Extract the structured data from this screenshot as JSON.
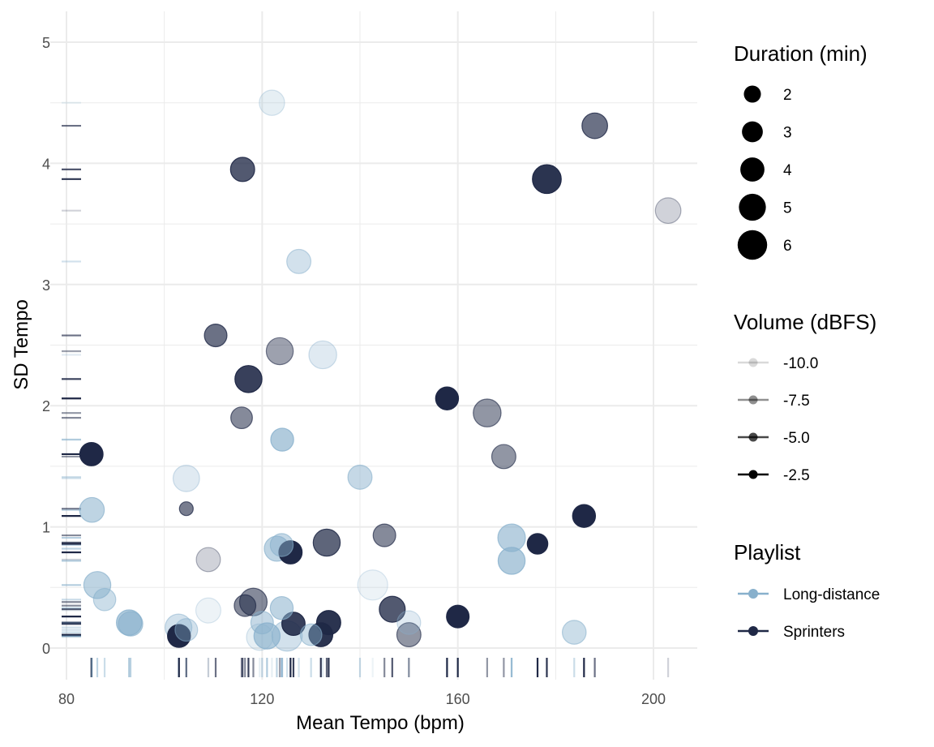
{
  "chart_data": {
    "type": "scatter",
    "xlabel": "Mean Tempo (bpm)",
    "ylabel": "SD Tempo",
    "xlim": [
      78,
      208
    ],
    "ylim": [
      -0.25,
      5.25
    ],
    "xticks": [
      80,
      120,
      160,
      200
    ],
    "yticks": [
      0,
      1,
      2,
      3,
      4,
      5
    ],
    "grid": true,
    "rug": true,
    "legend_position": "right",
    "colors": {
      "Long-distance": "#88b0cc",
      "Sprinters": "#1f2846"
    },
    "legends": {
      "size": {
        "title": "Duration (min)",
        "values": [
          2,
          3,
          4,
          5,
          6
        ]
      },
      "alpha": {
        "title": "Volume (dBFS)",
        "labels": [
          "-10.0",
          "-7.5",
          "-5.0",
          "-2.5"
        ],
        "values": [
          -10,
          -7.5,
          -5,
          -2.5
        ]
      },
      "color": {
        "title": "Playlist",
        "labels": [
          "Long-distance",
          "Sprinters"
        ]
      }
    },
    "points": [
      {
        "x": 85.1,
        "y": 1.6,
        "dur": 3.7,
        "vol": -2.5,
        "pl": "Sprinters"
      },
      {
        "x": 85.2,
        "y": 1.14,
        "dur": 4.2,
        "vol": -6.5,
        "pl": "Long-distance"
      },
      {
        "x": 86.3,
        "y": 0.52,
        "dur": 5.0,
        "vol": -6.5,
        "pl": "Long-distance"
      },
      {
        "x": 87.8,
        "y": 0.4,
        "dur": 3.4,
        "vol": -7.5,
        "pl": "Long-distance"
      },
      {
        "x": 92.8,
        "y": 0.21,
        "dur": 4.4,
        "vol": -5.5,
        "pl": "Long-distance"
      },
      {
        "x": 93.1,
        "y": 0.2,
        "dur": 4.1,
        "vol": -6.5,
        "pl": "Long-distance"
      },
      {
        "x": 102.9,
        "y": 0.17,
        "dur": 4.9,
        "vol": -8.0,
        "pl": "Long-distance"
      },
      {
        "x": 103.0,
        "y": 0.1,
        "dur": 3.6,
        "vol": -2.5,
        "pl": "Sprinters"
      },
      {
        "x": 104.5,
        "y": 0.15,
        "dur": 3.5,
        "vol": -8.0,
        "pl": "Long-distance"
      },
      {
        "x": 104.5,
        "y": 1.4,
        "dur": 4.8,
        "vol": -9.0,
        "pl": "Long-distance"
      },
      {
        "x": 104.5,
        "y": 1.15,
        "dur": 1.3,
        "vol": -6.0,
        "pl": "Sprinters"
      },
      {
        "x": 109.0,
        "y": 0.73,
        "dur": 4.0,
        "vol": -9.5,
        "pl": "Sprinters"
      },
      {
        "x": 109.0,
        "y": 0.31,
        "dur": 4.3,
        "vol": -10.0,
        "pl": "Long-distance"
      },
      {
        "x": 110.5,
        "y": 2.58,
        "dur": 3.5,
        "vol": -5.5,
        "pl": "Sprinters"
      },
      {
        "x": 115.8,
        "y": 1.9,
        "dur": 3.2,
        "vol": -6.5,
        "pl": "Sprinters"
      },
      {
        "x": 116.0,
        "y": 3.95,
        "dur": 4.0,
        "vol": -4.5,
        "pl": "Sprinters"
      },
      {
        "x": 116.5,
        "y": 0.35,
        "dur": 3.2,
        "vol": -6.5,
        "pl": "Sprinters"
      },
      {
        "x": 117.2,
        "y": 2.22,
        "dur": 5.0,
        "vol": -3.5,
        "pl": "Sprinters"
      },
      {
        "x": 118.2,
        "y": 0.38,
        "dur": 5.2,
        "vol": -6.5,
        "pl": "Sprinters"
      },
      {
        "x": 119.5,
        "y": 0.09,
        "dur": 4.8,
        "vol": -9.5,
        "pl": "Long-distance"
      },
      {
        "x": 120.0,
        "y": 0.21,
        "dur": 3.5,
        "vol": -7.0,
        "pl": "Long-distance"
      },
      {
        "x": 121.0,
        "y": 0.1,
        "dur": 4.7,
        "vol": -5.5,
        "pl": "Long-distance"
      },
      {
        "x": 122.0,
        "y": 4.5,
        "dur": 4.4,
        "vol": -9.5,
        "pl": "Long-distance"
      },
      {
        "x": 123.0,
        "y": 0.82,
        "dur": 4.3,
        "vol": -6.5,
        "pl": "Long-distance"
      },
      {
        "x": 123.6,
        "y": 2.45,
        "dur": 5.0,
        "vol": -7.5,
        "pl": "Sprinters"
      },
      {
        "x": 124.0,
        "y": 0.85,
        "dur": 3.6,
        "vol": -7.0,
        "pl": "Long-distance"
      },
      {
        "x": 124.0,
        "y": 0.33,
        "dur": 3.6,
        "vol": -6.5,
        "pl": "Long-distance"
      },
      {
        "x": 124.1,
        "y": 1.72,
        "dur": 3.6,
        "vol": -5.5,
        "pl": "Long-distance"
      },
      {
        "x": 125.1,
        "y": 0.1,
        "dur": 6.3,
        "vol": -8.0,
        "pl": "Long-distance"
      },
      {
        "x": 125.8,
        "y": 0.79,
        "dur": 3.7,
        "vol": -2.5,
        "pl": "Sprinters"
      },
      {
        "x": 126.4,
        "y": 0.2,
        "dur": 3.7,
        "vol": -3.5,
        "pl": "Sprinters"
      },
      {
        "x": 127.5,
        "y": 3.19,
        "dur": 4.0,
        "vol": -8.0,
        "pl": "Long-distance"
      },
      {
        "x": 130.0,
        "y": 0.11,
        "dur": 3.2,
        "vol": -7.5,
        "pl": "Long-distance"
      },
      {
        "x": 132.0,
        "y": 0.11,
        "dur": 3.9,
        "vol": -3.0,
        "pl": "Sprinters"
      },
      {
        "x": 132.4,
        "y": 2.42,
        "dur": 5.3,
        "vol": -9.0,
        "pl": "Long-distance"
      },
      {
        "x": 133.2,
        "y": 0.87,
        "dur": 5.0,
        "vol": -5.0,
        "pl": "Sprinters"
      },
      {
        "x": 133.6,
        "y": 0.21,
        "dur": 4.0,
        "vol": -3.0,
        "pl": "Sprinters"
      },
      {
        "x": 140.0,
        "y": 1.41,
        "dur": 4.0,
        "vol": -7.0,
        "pl": "Long-distance"
      },
      {
        "x": 142.6,
        "y": 0.52,
        "dur": 6.2,
        "vol": -10.0,
        "pl": "Long-distance"
      },
      {
        "x": 145.0,
        "y": 0.93,
        "dur": 3.5,
        "vol": -6.5,
        "pl": "Sprinters"
      },
      {
        "x": 146.6,
        "y": 0.32,
        "dur": 4.6,
        "vol": -4.5,
        "pl": "Sprinters"
      },
      {
        "x": 150.0,
        "y": 0.21,
        "dur": 3.8,
        "vol": -9.0,
        "pl": "Long-distance"
      },
      {
        "x": 150.0,
        "y": 0.11,
        "dur": 4.0,
        "vol": -7.0,
        "pl": "Sprinters"
      },
      {
        "x": 157.8,
        "y": 2.06,
        "dur": 3.6,
        "vol": -2.5,
        "pl": "Sprinters"
      },
      {
        "x": 160.0,
        "y": 0.26,
        "dur": 3.5,
        "vol": -2.5,
        "pl": "Sprinters"
      },
      {
        "x": 166.0,
        "y": 1.94,
        "dur": 5.3,
        "vol": -7.0,
        "pl": "Sprinters"
      },
      {
        "x": 169.4,
        "y": 1.58,
        "dur": 4.0,
        "vol": -7.0,
        "pl": "Sprinters"
      },
      {
        "x": 171.0,
        "y": 0.91,
        "dur": 5.2,
        "vol": -6.0,
        "pl": "Long-distance"
      },
      {
        "x": 171.0,
        "y": 0.72,
        "dur": 5.0,
        "vol": -5.5,
        "pl": "Long-distance"
      },
      {
        "x": 176.3,
        "y": 0.86,
        "dur": 2.9,
        "vol": -2.5,
        "pl": "Sprinters"
      },
      {
        "x": 178.2,
        "y": 3.87,
        "dur": 5.7,
        "vol": -3.0,
        "pl": "Sprinters"
      },
      {
        "x": 183.8,
        "y": 0.13,
        "dur": 3.9,
        "vol": -7.5,
        "pl": "Long-distance"
      },
      {
        "x": 185.8,
        "y": 1.09,
        "dur": 3.6,
        "vol": -2.5,
        "pl": "Sprinters"
      },
      {
        "x": 188.0,
        "y": 4.31,
        "dur": 4.5,
        "vol": -5.5,
        "pl": "Sprinters"
      },
      {
        "x": 203.0,
        "y": 3.61,
        "dur": 4.5,
        "vol": -9.5,
        "pl": "Sprinters"
      }
    ]
  }
}
